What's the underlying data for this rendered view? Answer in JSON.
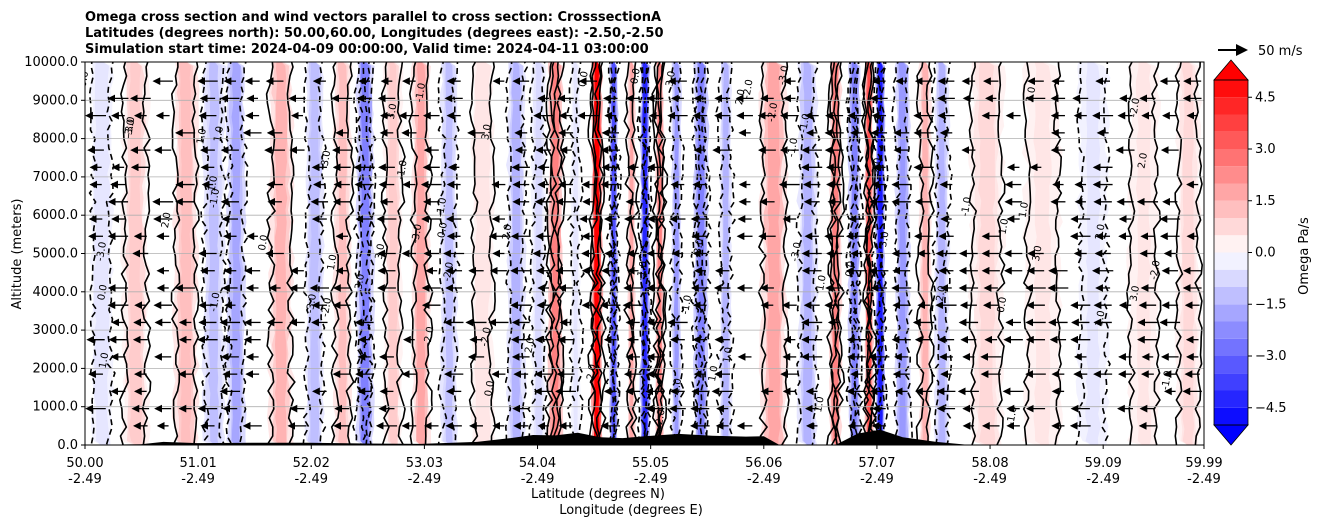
{
  "chart_data": {
    "type": "heatmap",
    "title_lines": [
      "Omega cross section and wind vectors parallel to cross section: CrosssectionA",
      "Latitudes (degrees north): 50.00,60.00, Longitudes (degrees east): -2.50,-2.50",
      "Simulation start time: 2024-04-09 00:00:00, Valid time: 2024-04-11 03:00:00"
    ],
    "ylabel": "Altitude (meters)",
    "xlabel_lat": "Latitude (degrees N)",
    "xlabel_lon": "Longitude (degrees E)",
    "ylim": [
      0,
      10000
    ],
    "xlim": [
      50.0,
      59.99
    ],
    "y_ticks": [
      {
        "v": 0,
        "label": "0.0"
      },
      {
        "v": 1000,
        "label": "1000.0"
      },
      {
        "v": 2000,
        "label": "2000.0"
      },
      {
        "v": 3000,
        "label": "3000.0"
      },
      {
        "v": 4000,
        "label": "4000.0"
      },
      {
        "v": 5000,
        "label": "5000.0"
      },
      {
        "v": 6000,
        "label": "6000.0"
      },
      {
        "v": 7000,
        "label": "7000.0"
      },
      {
        "v": 8000,
        "label": "8000.0"
      },
      {
        "v": 9000,
        "label": "9000.0"
      },
      {
        "v": 10000,
        "label": "10000.0"
      }
    ],
    "x_ticks": [
      {
        "v": 50.0,
        "lat": "50.00",
        "lon": "-2.49"
      },
      {
        "v": 51.01,
        "lat": "51.01",
        "lon": "-2.49"
      },
      {
        "v": 52.02,
        "lat": "52.02",
        "lon": "-2.49"
      },
      {
        "v": 53.03,
        "lat": "53.03",
        "lon": "-2.49"
      },
      {
        "v": 54.04,
        "lat": "54.04",
        "lon": "-2.49"
      },
      {
        "v": 55.05,
        "lat": "55.05",
        "lon": "-2.49"
      },
      {
        "v": 56.06,
        "lat": "56.06",
        "lon": "-2.49"
      },
      {
        "v": 57.07,
        "lat": "57.07",
        "lon": "-2.49"
      },
      {
        "v": 58.08,
        "lat": "58.08",
        "lon": "-2.49"
      },
      {
        "v": 59.09,
        "lat": "59.09",
        "lon": "-2.49"
      },
      {
        "v": 59.99,
        "lat": "59.99",
        "lon": "-2.49"
      }
    ],
    "colorbar": {
      "label": "Omega Pa/s",
      "range": [
        -5.0,
        5.0
      ],
      "tick_values": [
        -4.5,
        -3.0,
        -1.5,
        0.0,
        1.5,
        3.0,
        4.5
      ],
      "tick_labels": [
        "−4.5",
        "−3.0",
        "−1.5",
        "0.0",
        "1.5",
        "3.0",
        "4.5"
      ],
      "extend": "both",
      "colormap": "bwr"
    },
    "vector_key": {
      "label": "50 m/s",
      "speed": 50
    },
    "wind_direction": "leftward (southward along section)",
    "contour_labels": [
      "0.0",
      "1.0",
      "2.0",
      "-1.0",
      "-2.0",
      "-3.0",
      "3.0"
    ],
    "omega_bands": [
      {
        "lat": 50.15,
        "value": -0.6,
        "width": 0.18
      },
      {
        "lat": 50.45,
        "value": 0.9,
        "width": 0.22
      },
      {
        "lat": 50.9,
        "value": 1.3,
        "width": 0.2
      },
      {
        "lat": 51.15,
        "value": -1.2,
        "width": 0.18
      },
      {
        "lat": 51.35,
        "value": -1.8,
        "width": 0.15
      },
      {
        "lat": 51.75,
        "value": 1.6,
        "width": 0.2
      },
      {
        "lat": 52.05,
        "value": -1.3,
        "width": 0.15
      },
      {
        "lat": 52.3,
        "value": 1.2,
        "width": 0.15
      },
      {
        "lat": 52.5,
        "value": -2.5,
        "width": 0.15
      },
      {
        "lat": 52.75,
        "value": 0.9,
        "width": 0.15
      },
      {
        "lat": 53.0,
        "value": 1.7,
        "width": 0.15
      },
      {
        "lat": 53.25,
        "value": -1.2,
        "width": 0.14
      },
      {
        "lat": 53.55,
        "value": 0.6,
        "width": 0.18
      },
      {
        "lat": 53.85,
        "value": -1.6,
        "width": 0.15
      },
      {
        "lat": 54.05,
        "value": -0.8,
        "width": 0.12
      },
      {
        "lat": 54.2,
        "value": 2.5,
        "width": 0.12
      },
      {
        "lat": 54.38,
        "value": -0.4,
        "width": 0.08
      },
      {
        "lat": 54.57,
        "value": 5.0,
        "width": 0.09
      },
      {
        "lat": 54.72,
        "value": -3.6,
        "width": 0.07
      },
      {
        "lat": 54.88,
        "value": 1.8,
        "width": 0.06
      },
      {
        "lat": 55.0,
        "value": -4.2,
        "width": 0.08
      },
      {
        "lat": 55.13,
        "value": 2.4,
        "width": 0.07
      },
      {
        "lat": 55.28,
        "value": -1.9,
        "width": 0.08
      },
      {
        "lat": 55.5,
        "value": -2.6,
        "width": 0.12
      },
      {
        "lat": 55.72,
        "value": -1.4,
        "width": 0.1
      },
      {
        "lat": 56.15,
        "value": 1.7,
        "width": 0.22
      },
      {
        "lat": 56.45,
        "value": -1.4,
        "width": 0.16
      },
      {
        "lat": 56.7,
        "value": 2.4,
        "width": 0.1
      },
      {
        "lat": 56.87,
        "value": -2.6,
        "width": 0.1
      },
      {
        "lat": 57.0,
        "value": 3.6,
        "width": 0.07
      },
      {
        "lat": 57.1,
        "value": -4.6,
        "width": 0.08
      },
      {
        "lat": 57.3,
        "value": -2.0,
        "width": 0.12
      },
      {
        "lat": 57.5,
        "value": 1.6,
        "width": 0.1
      },
      {
        "lat": 57.65,
        "value": -1.6,
        "width": 0.12
      },
      {
        "lat": 58.05,
        "value": 0.8,
        "width": 0.28
      },
      {
        "lat": 58.55,
        "value": 0.5,
        "width": 0.3
      },
      {
        "lat": 59.0,
        "value": -0.4,
        "width": 0.25
      },
      {
        "lat": 59.45,
        "value": 0.4,
        "width": 0.25
      },
      {
        "lat": 59.85,
        "value": 0.8,
        "width": 0.2
      }
    ],
    "terrain_m": [
      {
        "lat": 50.0,
        "h": 0
      },
      {
        "lat": 50.5,
        "h": 20
      },
      {
        "lat": 50.7,
        "h": 80
      },
      {
        "lat": 51.0,
        "h": 50
      },
      {
        "lat": 51.5,
        "h": 60
      },
      {
        "lat": 52.0,
        "h": 60
      },
      {
        "lat": 52.5,
        "h": 40
      },
      {
        "lat": 53.0,
        "h": 30
      },
      {
        "lat": 53.5,
        "h": 80
      },
      {
        "lat": 53.8,
        "h": 180
      },
      {
        "lat": 54.0,
        "h": 260
      },
      {
        "lat": 54.2,
        "h": 250
      },
      {
        "lat": 54.4,
        "h": 320
      },
      {
        "lat": 54.6,
        "h": 200
      },
      {
        "lat": 54.8,
        "h": 180
      },
      {
        "lat": 55.0,
        "h": 230
      },
      {
        "lat": 55.3,
        "h": 290
      },
      {
        "lat": 55.6,
        "h": 240
      },
      {
        "lat": 55.9,
        "h": 220
      },
      {
        "lat": 56.06,
        "h": 230
      },
      {
        "lat": 56.2,
        "h": 0
      },
      {
        "lat": 56.7,
        "h": 0
      },
      {
        "lat": 56.9,
        "h": 300
      },
      {
        "lat": 57.1,
        "h": 400
      },
      {
        "lat": 57.3,
        "h": 200
      },
      {
        "lat": 57.6,
        "h": 80
      },
      {
        "lat": 57.9,
        "h": 0
      },
      {
        "lat": 59.99,
        "h": 0
      }
    ]
  }
}
